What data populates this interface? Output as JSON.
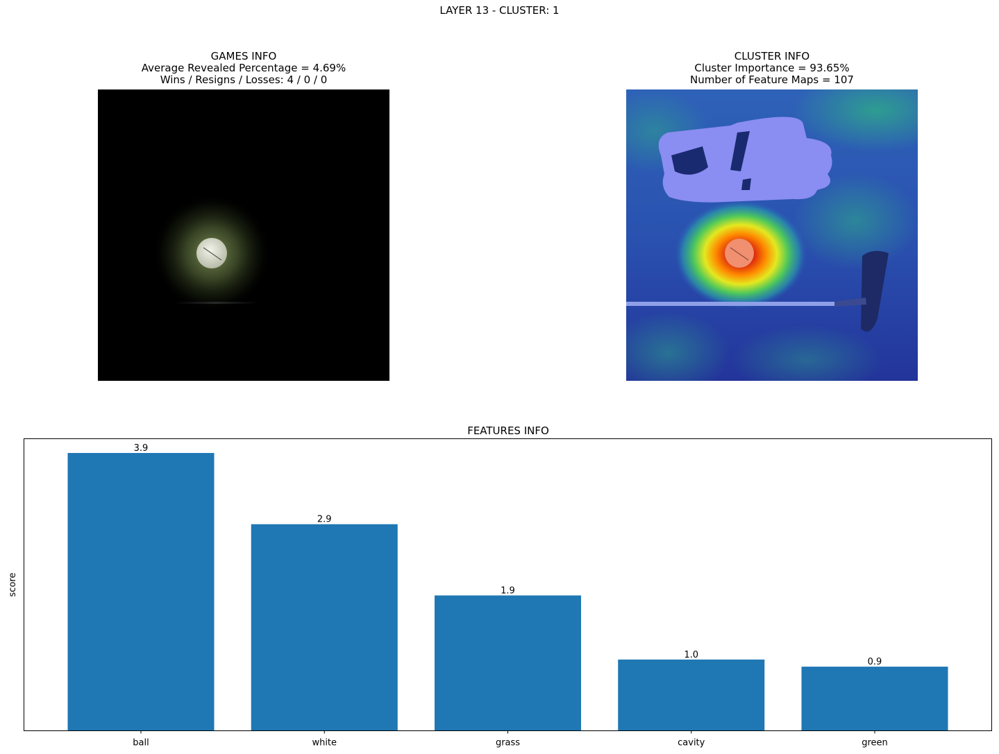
{
  "figure_title": "LAYER 13 - CLUSTER: 1",
  "games_info": {
    "title": "GAMES INFO",
    "line1": "Average Revealed Percentage = 4.69%",
    "line2": "Wins / Resigns / Losses: 4 / 0 / 0"
  },
  "cluster_info": {
    "title": "CLUSTER INFO",
    "line1": "Cluster Importance = 93.65%",
    "line2": "Number of Feature Maps = 107"
  },
  "colors": {
    "bar": "#1f77b4"
  },
  "chart_data": {
    "type": "bar",
    "title": "FEATURES INFO",
    "xlabel": "",
    "ylabel": "score",
    "categories": [
      "ball",
      "white",
      "grass",
      "cavity",
      "green"
    ],
    "values": [
      3.9,
      2.9,
      1.9,
      1.0,
      0.9
    ],
    "data_labels": [
      "3.9",
      "2.9",
      "1.9",
      "1.0",
      "0.9"
    ],
    "ylim": [
      0,
      4.1
    ],
    "y_ticks_visible": false,
    "grid": false,
    "legend": "none"
  }
}
